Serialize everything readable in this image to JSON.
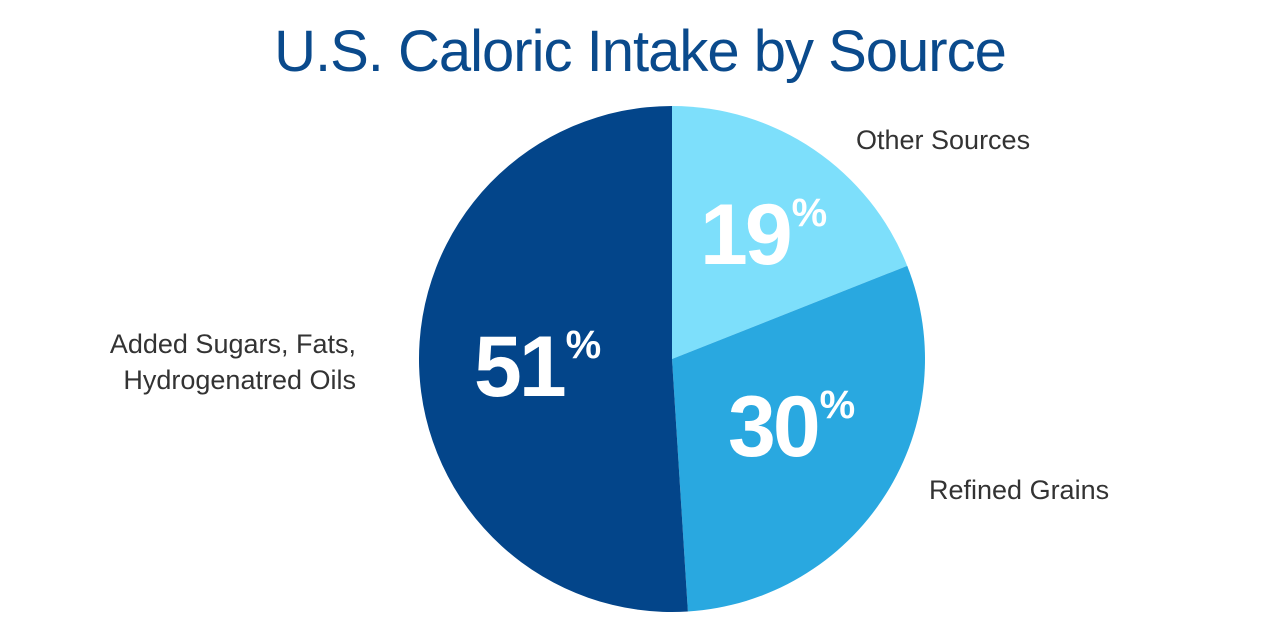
{
  "chart_data": {
    "type": "pie",
    "title": "U.S. Caloric Intake by Source",
    "slices": [
      {
        "label": "Other Sources",
        "value": 19,
        "display": "19",
        "color": "#7ddffb"
      },
      {
        "label": "Refined Grains",
        "value": 30,
        "display": "30",
        "color": "#29a8e0"
      },
      {
        "label": [
          "Added Sugars, Fats,",
          "Hydrogenatred Oils"
        ],
        "value": 51,
        "display": "51",
        "color": "#03458a"
      }
    ],
    "percent_sign": "%"
  }
}
